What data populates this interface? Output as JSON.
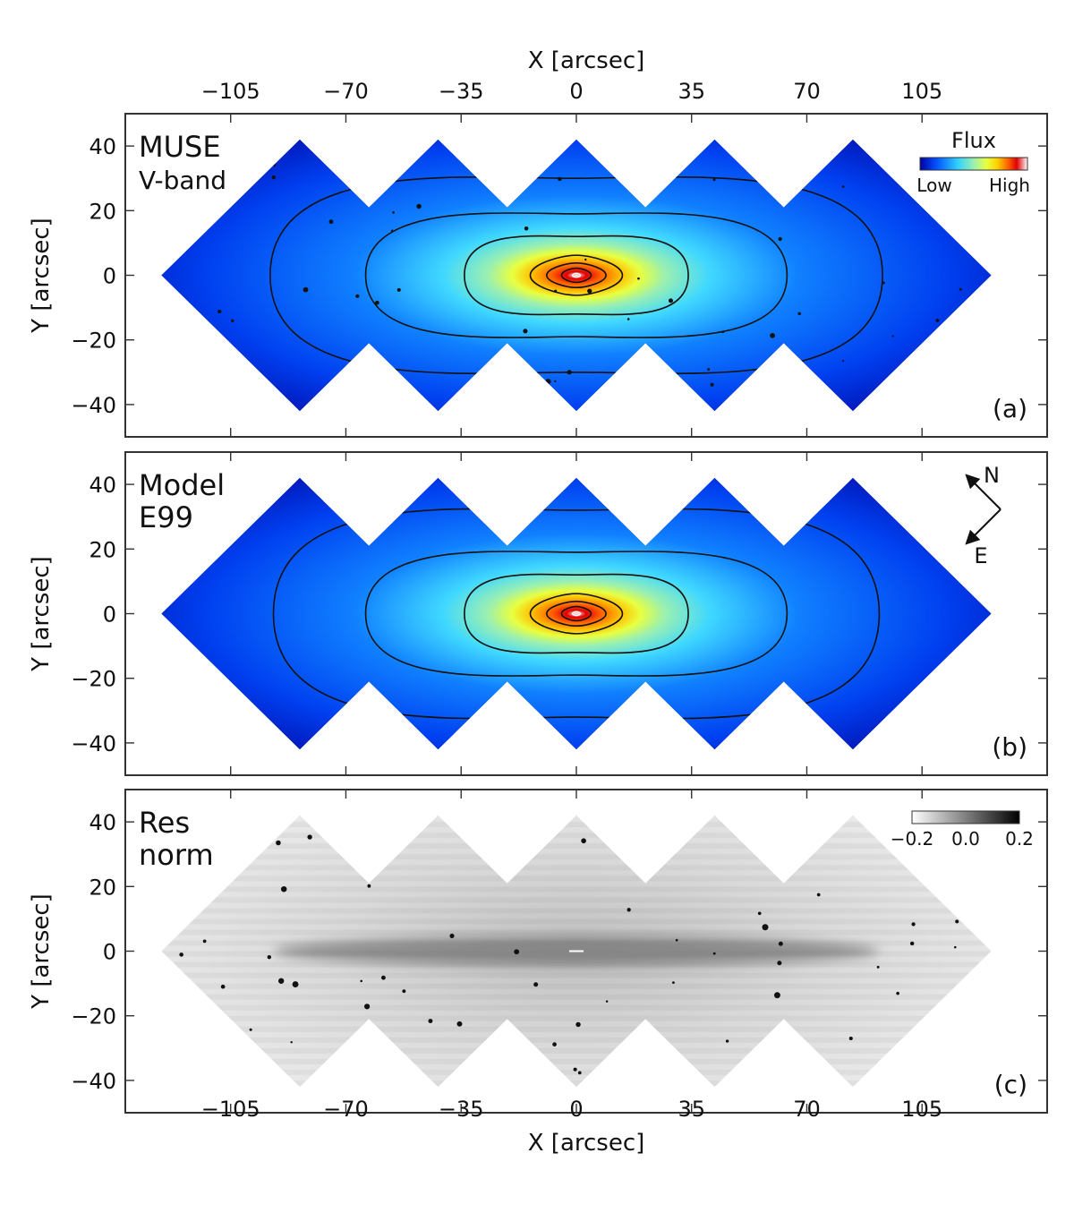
{
  "chart_data": {
    "type": "heatmap",
    "x_axis": {
      "label": "X [arcsec]",
      "range": [
        -137,
        143
      ],
      "ticks": [
        -105,
        -70,
        -35,
        0,
        35,
        70,
        105
      ],
      "tick_labels": [
        "−105",
        "−70",
        "−35",
        "0",
        "35",
        "70",
        "105"
      ]
    },
    "y_axis": {
      "label": "Y [arcsec]",
      "range": [
        -50,
        50
      ],
      "ticks": [
        40,
        20,
        0,
        -20,
        -40
      ],
      "tick_labels": [
        "40",
        "20",
        "0",
        "−20",
        "−40"
      ]
    },
    "footprint": {
      "centers_x": [
        -84,
        -42,
        0,
        42,
        84
      ],
      "half_width": 42
    },
    "panels": [
      {
        "id": "a",
        "title_lines": [
          "MUSE",
          "V-band"
        ],
        "panel_label": "(a)",
        "colorbar": {
          "title": "Flux",
          "tick_labels": [
            "Low",
            "High"
          ],
          "stops": [
            "#0000a0",
            "#0050ff",
            "#30d0ff",
            "#9bf0b0",
            "#e8ff40",
            "#ffd000",
            "#ff6000",
            "#e00000",
            "#ffffff"
          ]
        },
        "contour_semi_axes": [
          [
            1.2,
            0.6
          ],
          [
            4.5,
            2.2
          ],
          [
            9,
            3.8
          ],
          [
            14,
            6.2
          ],
          [
            34,
            12
          ],
          [
            64,
            19
          ],
          [
            93,
            30
          ]
        ]
      },
      {
        "id": "b",
        "title_lines": [
          "Model",
          "E99"
        ],
        "panel_label": "(b)",
        "compass": {
          "north": "N",
          "east": "E"
        },
        "contour_semi_axes": [
          [
            1.2,
            0.6
          ],
          [
            4.5,
            2.2
          ],
          [
            9,
            3.8
          ],
          [
            14,
            6.2
          ],
          [
            34,
            12
          ],
          [
            64,
            19
          ],
          [
            92,
            32
          ]
        ]
      },
      {
        "id": "c",
        "title_lines": [
          "Res",
          "norm"
        ],
        "panel_label": "(c)",
        "colorbar": {
          "tick_labels": [
            "−0.2",
            "0.0",
            "0.2"
          ],
          "range": [
            -0.2,
            0.2
          ]
        }
      }
    ]
  }
}
